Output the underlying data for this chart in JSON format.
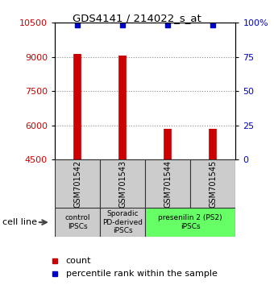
{
  "title": "GDS4141 / 214022_s_at",
  "samples": [
    "GSM701542",
    "GSM701543",
    "GSM701544",
    "GSM701545"
  ],
  "counts": [
    9150,
    9050,
    5850,
    5850
  ],
  "percentile_ranks": [
    99,
    99,
    99,
    99
  ],
  "ymin": 4500,
  "ymax": 10500,
  "yticks_left": [
    4500,
    6000,
    7500,
    9000,
    10500
  ],
  "yticks_right": [
    0,
    25,
    50,
    75,
    100
  ],
  "bar_color": "#cc0000",
  "dot_color": "#0000cc",
  "groups": [
    {
      "label": "control\nIPSCs",
      "samples": [
        0
      ],
      "color": "#cccccc"
    },
    {
      "label": "Sporadic\nPD-derived\niPSCs",
      "samples": [
        1
      ],
      "color": "#cccccc"
    },
    {
      "label": "presenilin 2 (PS2)\niPSCs",
      "samples": [
        2,
        3
      ],
      "color": "#66ff66"
    }
  ],
  "cell_line_label": "cell line",
  "legend_count_label": "count",
  "legend_percentile_label": "percentile rank within the sample",
  "bar_color_hex": "#cc0000",
  "dot_color_hex": "#0000cc",
  "left_tick_color": "#cc0000",
  "right_tick_color": "#0000cc"
}
